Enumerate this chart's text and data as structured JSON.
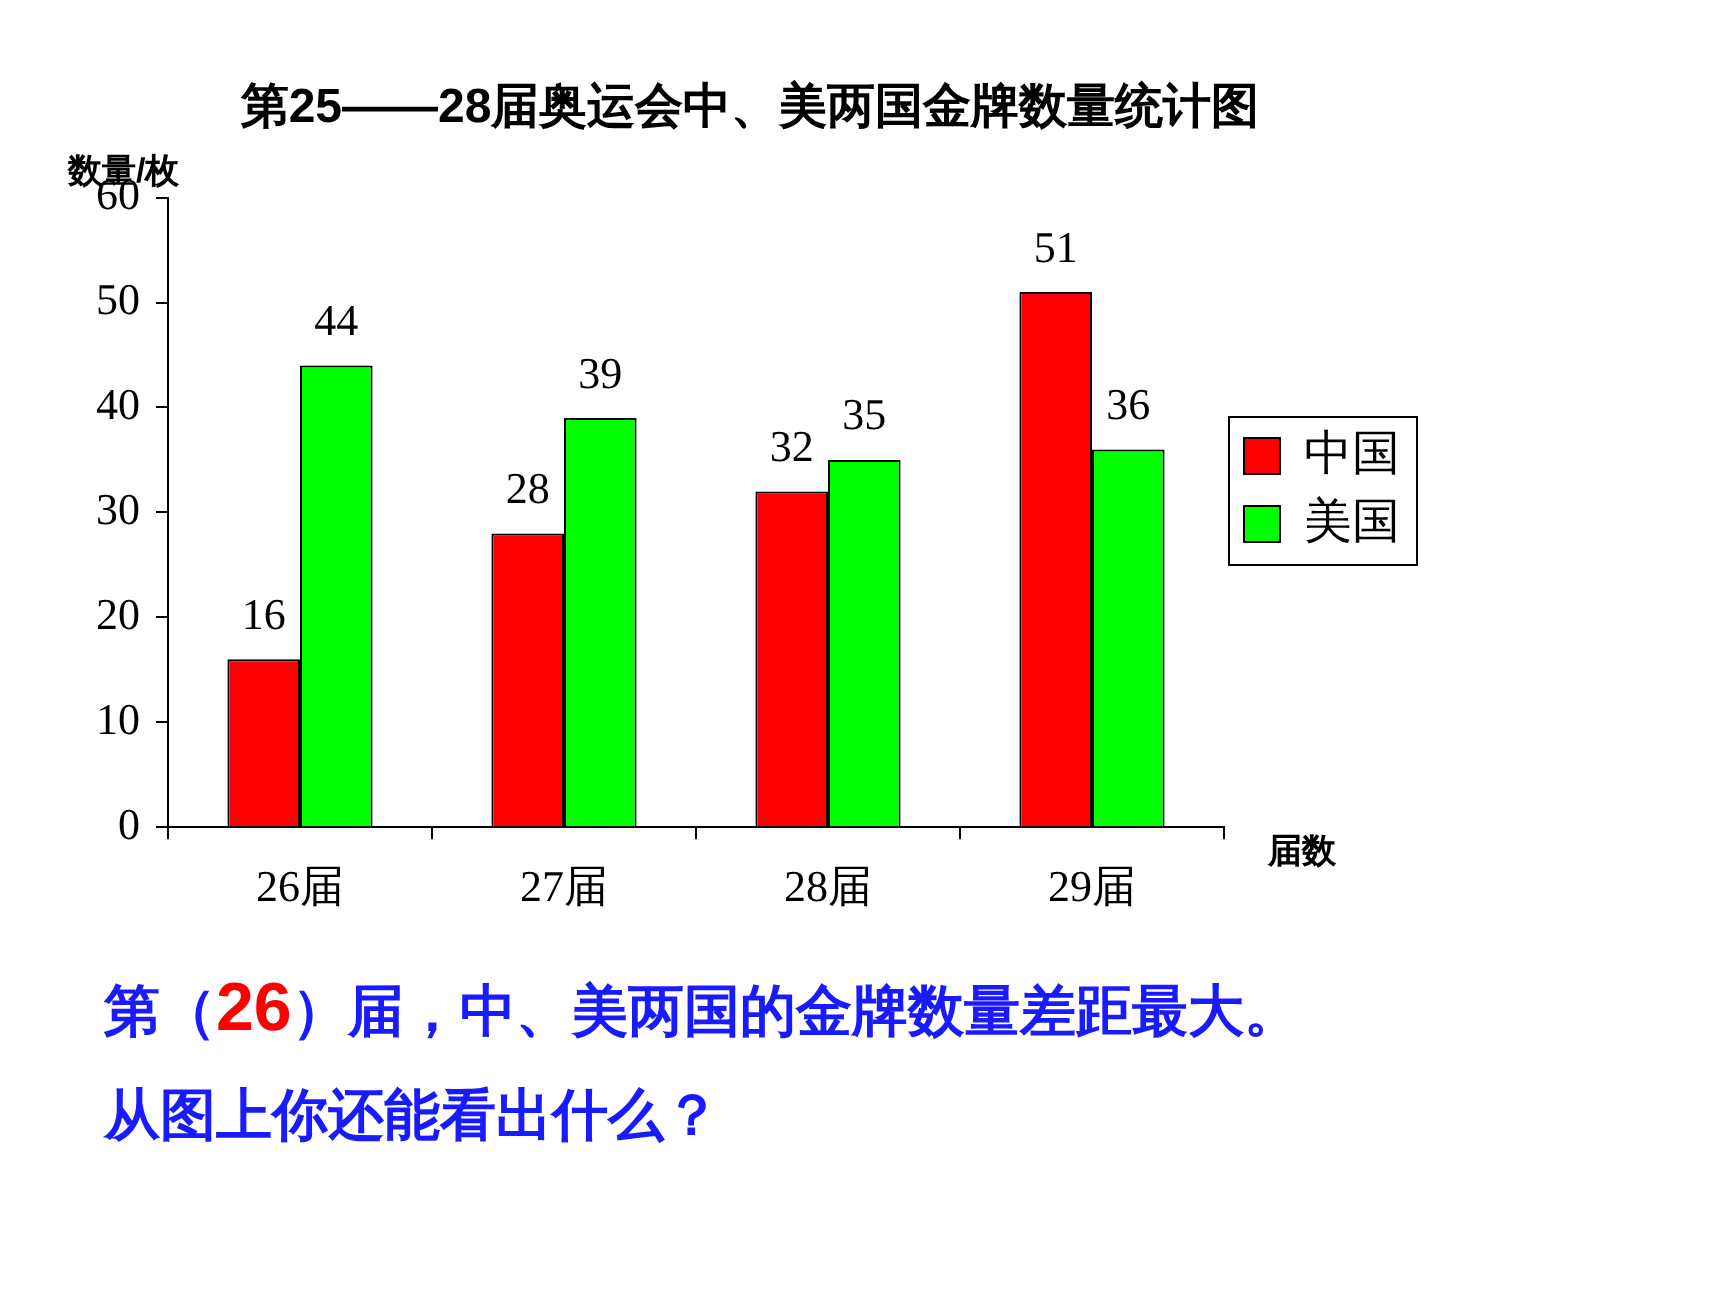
{
  "chart_data": {
    "type": "bar",
    "title": "第25——28届奥运会中、美两国金牌数量统计图",
    "ylabel": "数量/枚",
    "xlabel": "届数",
    "categories": [
      "26届",
      "27届",
      "28届",
      "29届"
    ],
    "series": [
      {
        "name": "中国",
        "color": "#ff0000",
        "values": [
          16,
          28,
          32,
          51
        ]
      },
      {
        "name": "美国",
        "color": "#00ff00",
        "values": [
          44,
          39,
          35,
          36
        ]
      }
    ],
    "ylim": [
      0,
      60
    ],
    "yticks": [
      0,
      10,
      20,
      30,
      40,
      50,
      60
    ],
    "grid": false,
    "legend": "right",
    "data_labels": true,
    "annotations": [
      "第（26）届，中、美两国的金牌数量差距最大。",
      "从图上你还能看出什么？"
    ]
  }
}
